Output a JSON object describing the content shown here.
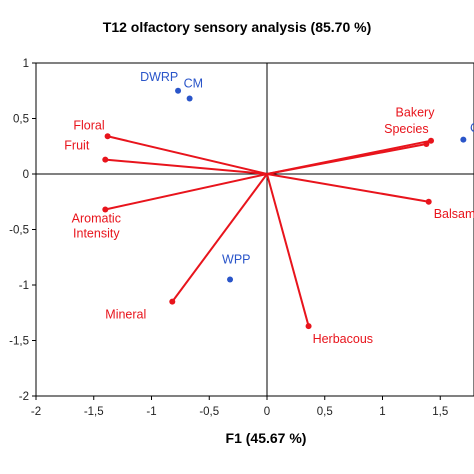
{
  "chart_data": {
    "type": "scatter",
    "title": "T12 olfactory sensory analysis (85.70 %)",
    "xlabel": "F1 (45.67 %)",
    "ylabel": "",
    "xlim": [
      -2,
      1.8
    ],
    "ylim": [
      -2,
      1
    ],
    "x_ticks": [
      {
        "value": -2,
        "label": "-2"
      },
      {
        "value": -1.5,
        "label": "-1,5"
      },
      {
        "value": -1,
        "label": "-1"
      },
      {
        "value": -0.5,
        "label": "-0,5"
      },
      {
        "value": 0,
        "label": "0"
      },
      {
        "value": 0.5,
        "label": "0,5"
      },
      {
        "value": 1,
        "label": "1"
      },
      {
        "value": 1.5,
        "label": "1,5"
      }
    ],
    "y_ticks": [
      {
        "value": 1,
        "label": "1"
      },
      {
        "value": 0.5,
        "label": "0,5"
      },
      {
        "value": 0,
        "label": "0"
      },
      {
        "value": -0.5,
        "label": "-0,5"
      },
      {
        "value": -1,
        "label": "-1"
      },
      {
        "value": -1.5,
        "label": "-1,5"
      },
      {
        "value": -2,
        "label": "-2"
      }
    ],
    "grid": false,
    "variables": [
      {
        "name": "Floral",
        "x": -1.38,
        "y": 0.34
      },
      {
        "name": "Fruit",
        "x": -1.4,
        "y": 0.13
      },
      {
        "name": "Aromatic Intensity",
        "x": -1.4,
        "y": -0.32
      },
      {
        "name": "Mineral",
        "x": -0.82,
        "y": -1.15
      },
      {
        "name": "Herbacous",
        "x": 0.36,
        "y": -1.37
      },
      {
        "name": "Balsam",
        "x": 1.4,
        "y": -0.25
      },
      {
        "name": "Bakery",
        "x": 1.42,
        "y": 0.3
      },
      {
        "name": "Species",
        "x": 1.38,
        "y": 0.27
      }
    ],
    "observations": [
      {
        "name": "DWRP",
        "x": -0.77,
        "y": 0.75
      },
      {
        "name": "CM",
        "x": -0.67,
        "y": 0.68
      },
      {
        "name": "WPP",
        "x": -0.32,
        "y": -0.95
      },
      {
        "name": "",
        "x": 1.7,
        "y": 0.31
      }
    ],
    "partial_labels": [
      "C",
      "Balsam"
    ],
    "colors": {
      "variables": "#e8141c",
      "observations": "#2a55c9",
      "axes": "#000000"
    }
  }
}
